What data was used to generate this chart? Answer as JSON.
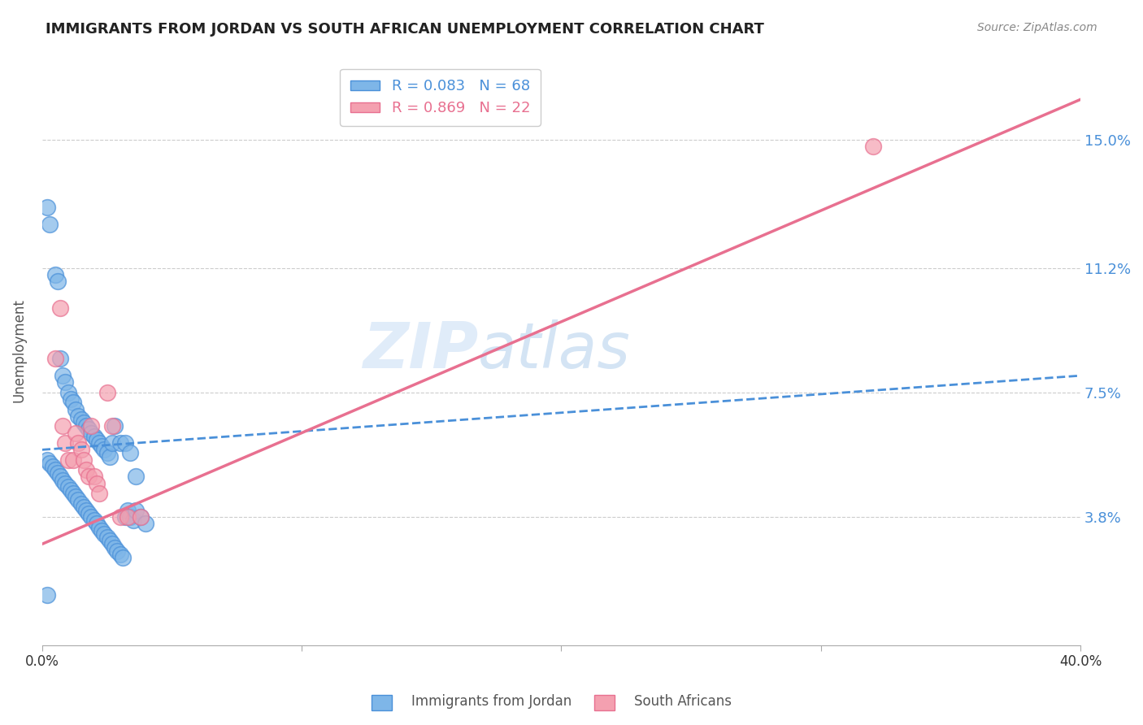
{
  "title": "IMMIGRANTS FROM JORDAN VS SOUTH AFRICAN UNEMPLOYMENT CORRELATION CHART",
  "source": "Source: ZipAtlas.com",
  "ylabel": "Unemployment",
  "ytick_labels": [
    "15.0%",
    "11.2%",
    "7.5%",
    "3.8%"
  ],
  "ytick_values": [
    0.15,
    0.112,
    0.075,
    0.038
  ],
  "xlim": [
    0.0,
    0.4
  ],
  "ylim": [
    0.0,
    0.175
  ],
  "legend_label1": "Immigrants from Jordan",
  "legend_label2": "South Africans",
  "color_blue": "#7EB6E8",
  "color_pink": "#F4A0B0",
  "color_blue_line": "#4A90D9",
  "color_pink_line": "#E87090",
  "watermark_zip": "ZIP",
  "watermark_atlas": "atlas",
  "blue_scatter_x": [
    0.002,
    0.003,
    0.005,
    0.006,
    0.007,
    0.008,
    0.009,
    0.01,
    0.011,
    0.012,
    0.013,
    0.014,
    0.015,
    0.016,
    0.017,
    0.018,
    0.019,
    0.02,
    0.021,
    0.022,
    0.023,
    0.024,
    0.025,
    0.026,
    0.027,
    0.028,
    0.03,
    0.032,
    0.034,
    0.036,
    0.002,
    0.003,
    0.004,
    0.005,
    0.006,
    0.007,
    0.008,
    0.009,
    0.01,
    0.011,
    0.012,
    0.013,
    0.014,
    0.015,
    0.016,
    0.017,
    0.018,
    0.019,
    0.02,
    0.021,
    0.022,
    0.023,
    0.024,
    0.025,
    0.026,
    0.027,
    0.028,
    0.029,
    0.03,
    0.031,
    0.032,
    0.033,
    0.034,
    0.035,
    0.036,
    0.038,
    0.04,
    0.002
  ],
  "blue_scatter_y": [
    0.13,
    0.125,
    0.11,
    0.108,
    0.085,
    0.08,
    0.078,
    0.075,
    0.073,
    0.072,
    0.07,
    0.068,
    0.067,
    0.066,
    0.065,
    0.064,
    0.063,
    0.062,
    0.061,
    0.06,
    0.059,
    0.058,
    0.057,
    0.056,
    0.06,
    0.065,
    0.06,
    0.06,
    0.057,
    0.05,
    0.055,
    0.054,
    0.053,
    0.052,
    0.051,
    0.05,
    0.049,
    0.048,
    0.047,
    0.046,
    0.045,
    0.044,
    0.043,
    0.042,
    0.041,
    0.04,
    0.039,
    0.038,
    0.037,
    0.036,
    0.035,
    0.034,
    0.033,
    0.032,
    0.031,
    0.03,
    0.029,
    0.028,
    0.027,
    0.026,
    0.038,
    0.04,
    0.038,
    0.037,
    0.04,
    0.038,
    0.036,
    0.015
  ],
  "pink_scatter_x": [
    0.005,
    0.007,
    0.008,
    0.009,
    0.01,
    0.012,
    0.013,
    0.014,
    0.015,
    0.016,
    0.017,
    0.018,
    0.019,
    0.02,
    0.021,
    0.022,
    0.025,
    0.027,
    0.03,
    0.033,
    0.32,
    0.038
  ],
  "pink_scatter_y": [
    0.085,
    0.1,
    0.065,
    0.06,
    0.055,
    0.055,
    0.063,
    0.06,
    0.058,
    0.055,
    0.052,
    0.05,
    0.065,
    0.05,
    0.048,
    0.045,
    0.075,
    0.065,
    0.038,
    0.038,
    0.148,
    0.038
  ],
  "blue_line_x": [
    0.0,
    0.4
  ],
  "blue_line_y": [
    0.058,
    0.08
  ],
  "pink_line_x": [
    0.0,
    0.4
  ],
  "pink_line_y": [
    0.03,
    0.162
  ]
}
